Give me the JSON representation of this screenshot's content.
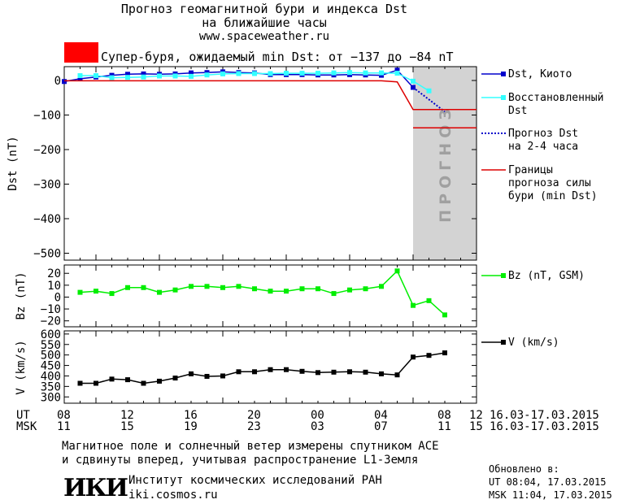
{
  "header": {
    "title_line1": "Прогноз геомагнитной бури и индекса Dst",
    "title_line2": "на ближайшие часы",
    "site": "www.spaceweather.ru"
  },
  "alert": {
    "color": "#ff0000",
    "text": "Супер-буря, ожидаемый min Dst: от −137 до −84 nT"
  },
  "legend": {
    "dst_kyoto": "Dst, Киото",
    "dst_restored_1": "Восстановленный",
    "dst_restored_2": "Dst",
    "dst_forecast_1": "Прогноз Dst",
    "dst_forecast_2": "на 2-4 часа",
    "bounds_1": "Границы",
    "bounds_2": "прогноза силы",
    "bounds_3": "бури (min Dst)",
    "bz": "Bz (nT, GSM)",
    "v": "V (km/s)"
  },
  "forecast_zone_label": "ПРОГНОЗ",
  "time_axis": {
    "ut_label": "UT",
    "msk_label": "MSK",
    "ut_ticks": [
      "08",
      "12",
      "16",
      "20",
      "00",
      "04",
      "08",
      "12"
    ],
    "msk_ticks": [
      "11",
      "15",
      "19",
      "23",
      "03",
      "07",
      "11",
      "15"
    ],
    "date_range_ut": "16.03-17.03.2015",
    "date_range_msk": "16.03-17.03.2015"
  },
  "footer": {
    "note_line1": "Магнитное поле и солнечный ветер измерены спутником ACE",
    "note_line2": "и сдвинуты вперед, учитывая распространение L1-Земля",
    "logo": "ИКИ",
    "institute": "Институт космических исследований РАН",
    "institute_site": "iki.cosmos.ru",
    "updated_label": "Обновлено в:",
    "updated_ut": "UT   08:04, 17.03.2015",
    "updated_msk": "MSK 11:04, 17.03.2015"
  },
  "colors": {
    "kyoto": "#0000cc",
    "restored": "#33ffff",
    "forecast": "#0000cc",
    "bounds": "#dd0000",
    "bz": "#00ee00",
    "v": "#000000",
    "forecast_zone": "#d3d3d3"
  },
  "chart_data": [
    {
      "type": "line",
      "ylabel": "Dst (nT)",
      "xlim": [
        -1,
        25
      ],
      "ylim": [
        -520,
        40
      ],
      "yticks": [
        0,
        -100,
        -200,
        -300,
        -400,
        -500
      ],
      "ytick_labels": [
        "0",
        "−100",
        "−200",
        "−300",
        "−400",
        "−500"
      ],
      "forecast_zone": [
        21,
        25
      ],
      "series": [
        {
          "name": "Dst, Киото",
          "x": [
            -1,
            0,
            1,
            2,
            3,
            4,
            5,
            6,
            7,
            8,
            9,
            10,
            11,
            12,
            13,
            14,
            15,
            16,
            17,
            18,
            19,
            20,
            21
          ],
          "y": [
            -3,
            5,
            10,
            15,
            18,
            19,
            18,
            19,
            22,
            23,
            25,
            23,
            22,
            17,
            17,
            17,
            16,
            16,
            17,
            16,
            15,
            30,
            -20
          ]
        },
        {
          "name": "Восстановленный Dst",
          "x": [
            0,
            1,
            2,
            3,
            4,
            5,
            6,
            7,
            8,
            9,
            10,
            11,
            12,
            13,
            14,
            15,
            16,
            17,
            18,
            19,
            20,
            21,
            22
          ],
          "y": [
            14,
            14,
            8,
            9,
            10,
            13,
            13,
            12,
            16,
            19,
            20,
            20,
            20,
            21,
            21,
            21,
            22,
            23,
            22,
            22,
            21,
            -2,
            -30
          ]
        },
        {
          "name": "Прогноз Dst на 2-4 часа",
          "x": [
            21,
            22,
            23
          ],
          "y": [
            -20,
            -55,
            -90
          ]
        },
        {
          "name": "Границы прогноза силы бури (min Dst)",
          "x": [
            -1,
            19,
            20,
            21,
            25
          ],
          "y": [
            -1,
            -1,
            -4,
            -84,
            -84
          ]
        },
        {
          "name": "Границы прогноза силы бури (min Dst)",
          "x": [
            21,
            25
          ],
          "y": [
            -137,
            -137
          ]
        }
      ]
    },
    {
      "type": "line",
      "ylabel": "Bz (nT)",
      "xlim": [
        -1,
        25
      ],
      "ylim": [
        -25,
        27
      ],
      "yticks": [
        20,
        10,
        0,
        -10,
        -20
      ],
      "ytick_labels": [
        "20",
        "10",
        "0",
        "−10",
        "−20"
      ],
      "series": [
        {
          "name": "Bz (nT, GSM)",
          "x": [
            0,
            1,
            2,
            3,
            4,
            5,
            6,
            7,
            8,
            9,
            10,
            11,
            12,
            13,
            14,
            15,
            16,
            17,
            18,
            19,
            20,
            21,
            22,
            23
          ],
          "y": [
            4,
            5,
            3,
            8,
            8,
            4,
            6,
            9,
            9,
            8,
            9,
            7,
            5,
            5,
            7,
            7,
            3,
            6,
            7,
            9,
            22,
            -7,
            -3,
            -15
          ]
        }
      ]
    },
    {
      "type": "line",
      "ylabel": "V (km/s)",
      "xlim": [
        -1,
        25
      ],
      "ylim": [
        270,
        615
      ],
      "yticks": [
        600,
        550,
        500,
        450,
        400,
        350,
        300
      ],
      "ytick_labels": [
        "600",
        "550",
        "500",
        "450",
        "400",
        "350",
        "300"
      ],
      "series": [
        {
          "name": "V (km/s)",
          "x": [
            0,
            1,
            2,
            3,
            4,
            5,
            6,
            7,
            8,
            9,
            10,
            11,
            12,
            13,
            14,
            15,
            16,
            17,
            18,
            19,
            20,
            21,
            22,
            23
          ],
          "y": [
            365,
            365,
            385,
            382,
            365,
            375,
            390,
            410,
            398,
            400,
            420,
            420,
            430,
            430,
            422,
            416,
            418,
            420,
            418,
            410,
            405,
            490,
            498,
            510
          ]
        }
      ]
    }
  ]
}
